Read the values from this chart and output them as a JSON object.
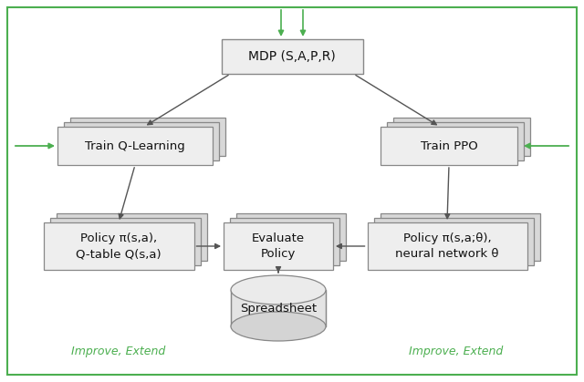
{
  "bg_color": "#ffffff",
  "border_color": "#4caf50",
  "box_edge_color": "#888888",
  "box_face_color": "#eeeeee",
  "box_face_back": "#d8d8d8",
  "arrow_color": "#555555",
  "green_arrow_color": "#4caf50",
  "text_color": "#111111",
  "green_text_color": "#4caf50",
  "mdp_label": "MDP (S,A,P,R)",
  "train_ql_label": "Train Q-Learning",
  "train_ppo_label": "Train PPO",
  "policy_ql_label": "Policy π(s,a),\nQ-table Q(s,a)",
  "eval_label": "Evaluate\nPolicy",
  "policy_ppo_label": "Policy π(s,a;θ),\nneural network θ",
  "spreadsheet_label": "Spreadsheet",
  "improve_extend": "Improve, Extend",
  "fig_w": 6.4,
  "fig_h": 4.19
}
